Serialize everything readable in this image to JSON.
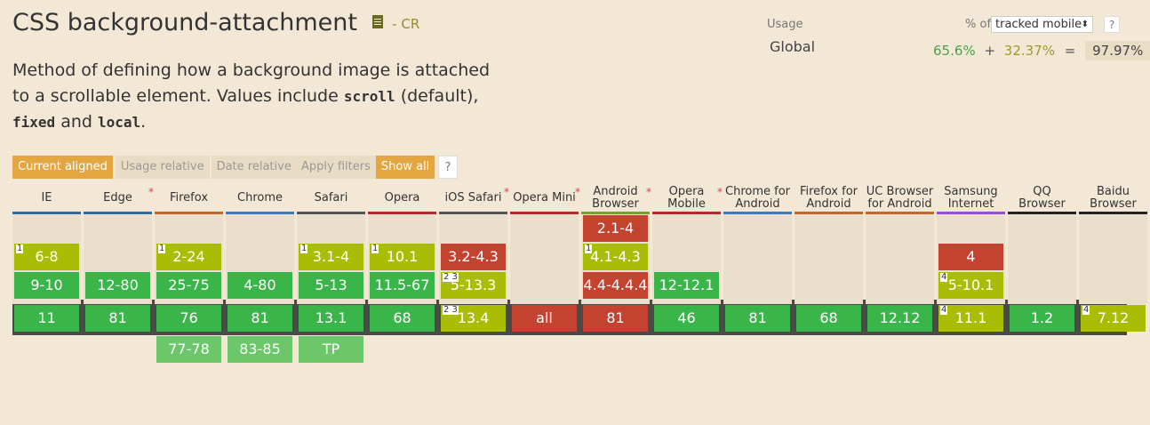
{
  "title": "CSS background-attachment",
  "status": "- CR",
  "description": {
    "part1": "Method of defining how a background image is attached to a scrollable element. Values include ",
    "code1": "scroll",
    "part2": " (default), ",
    "code2": "fixed",
    "part3": " and ",
    "code3": "local",
    "part4": "."
  },
  "usage": {
    "label": "Usage",
    "region": "Global",
    "pct_of": "% of",
    "tracked": "tracked mobile",
    "help": "?",
    "full": "65.6%",
    "plus": "+",
    "partial": "32.37%",
    "equals": "=",
    "total": "97.97%"
  },
  "filters": {
    "current": "Current aligned",
    "usage_rel": "Usage relative",
    "date_rel": "Date relative",
    "apply": "Apply filters",
    "show_all": "Show all",
    "help": "?"
  },
  "colors": {
    "supported": "#39b54a",
    "partial": "#a8bd04",
    "unsupported": "#c44230",
    "future": "#6cc76b",
    "accent": "#e3a640"
  },
  "browsers": [
    {
      "name": "IE",
      "star": false,
      "bar": "#2a6ea8",
      "cells": [
        {
          "row": 1,
          "label": "6-8",
          "type": "p",
          "note": "1"
        },
        {
          "row": 2,
          "label": "9-10",
          "type": "y"
        },
        {
          "row": 3,
          "label": "11",
          "type": "y"
        }
      ]
    },
    {
      "name": "Edge",
      "star": true,
      "bar": "#2a6ea8",
      "cells": [
        {
          "row": 2,
          "label": "12-80",
          "type": "y"
        },
        {
          "row": 3,
          "label": "81",
          "type": "y"
        }
      ]
    },
    {
      "name": "Firefox",
      "star": false,
      "bar": "#c26728",
      "cells": [
        {
          "row": 1,
          "label": "2-24",
          "type": "p",
          "note": "1"
        },
        {
          "row": 2,
          "label": "25-75",
          "type": "y"
        },
        {
          "row": 3,
          "label": "76",
          "type": "y"
        },
        {
          "row": 4,
          "label": "77-78",
          "type": "f"
        }
      ]
    },
    {
      "name": "Chrome",
      "star": false,
      "bar": "#3a7bbf",
      "cells": [
        {
          "row": 2,
          "label": "4-80",
          "type": "y"
        },
        {
          "row": 3,
          "label": "81",
          "type": "y"
        },
        {
          "row": 4,
          "label": "83-85",
          "type": "f"
        }
      ]
    },
    {
      "name": "Safari",
      "star": false,
      "bar": "#555555",
      "cells": [
        {
          "row": 1,
          "label": "3.1-4",
          "type": "p",
          "note": "1"
        },
        {
          "row": 2,
          "label": "5-13",
          "type": "y"
        },
        {
          "row": 3,
          "label": "13.1",
          "type": "y"
        },
        {
          "row": 4,
          "label": "TP",
          "type": "f"
        }
      ]
    },
    {
      "name": "Opera",
      "star": false,
      "bar": "#b52a2a",
      "cells": [
        {
          "row": 1,
          "label": "10.1",
          "type": "p",
          "note": "1"
        },
        {
          "row": 2,
          "label": "11.5-67",
          "type": "y"
        },
        {
          "row": 3,
          "label": "68",
          "type": "y"
        }
      ]
    },
    {
      "name": "iOS Safari",
      "star": true,
      "bar": "#555555",
      "cells": [
        {
          "row": 1,
          "label": "3.2-4.3",
          "type": "n"
        },
        {
          "row": 2,
          "label": "5-13.3",
          "type": "p",
          "note": "2 3"
        },
        {
          "row": 3,
          "label": "13.4",
          "type": "p",
          "note": "2 3"
        }
      ]
    },
    {
      "name": "Opera Mini",
      "star": true,
      "bar": "#b52a2a",
      "cells": [
        {
          "row": 3,
          "label": "all",
          "type": "n"
        }
      ]
    },
    {
      "name": "Android Browser",
      "star": true,
      "bar": "#7aa22a",
      "cells": [
        {
          "row": 0,
          "label": "2.1-4",
          "type": "n"
        },
        {
          "row": 1,
          "label": "4.1-4.3",
          "type": "p",
          "note": "1"
        },
        {
          "row": 2,
          "label": "4.4-4.4.4",
          "type": "n"
        },
        {
          "row": 3,
          "label": "81",
          "type": "n"
        }
      ]
    },
    {
      "name": "Opera Mobile",
      "star": true,
      "bar": "#b52a2a",
      "cells": [
        {
          "row": 2,
          "label": "12-12.1",
          "type": "y"
        },
        {
          "row": 3,
          "label": "46",
          "type": "y"
        }
      ]
    },
    {
      "name": "Chrome for Android",
      "star": false,
      "bar": "#3a7bbf",
      "cells": [
        {
          "row": 3,
          "label": "81",
          "type": "y"
        }
      ]
    },
    {
      "name": "Firefox for Android",
      "star": false,
      "bar": "#c26728",
      "cells": [
        {
          "row": 3,
          "label": "68",
          "type": "y"
        }
      ]
    },
    {
      "name": "UC Browser for Android",
      "star": false,
      "bar": "#c26728",
      "cells": [
        {
          "row": 3,
          "label": "12.12",
          "type": "y"
        }
      ]
    },
    {
      "name": "Samsung Internet",
      "star": false,
      "bar": "#9a4ed6",
      "cells": [
        {
          "row": 1,
          "label": "4",
          "type": "n"
        },
        {
          "row": 2,
          "label": "5-10.1",
          "type": "p",
          "note": "4"
        },
        {
          "row": 3,
          "label": "11.1",
          "type": "p",
          "note": "4"
        }
      ]
    },
    {
      "name": "QQ Browser",
      "star": false,
      "bar": "#222222",
      "cells": [
        {
          "row": 3,
          "label": "1.2",
          "type": "y"
        }
      ]
    },
    {
      "name": "Baidu Browser",
      "star": false,
      "bar": "#222222",
      "cells": [
        {
          "row": 3,
          "label": "7.12",
          "type": "p",
          "note": "4"
        }
      ]
    }
  ]
}
